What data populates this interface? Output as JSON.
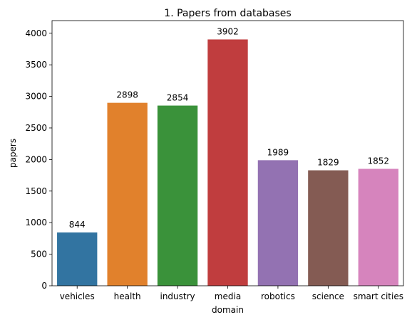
{
  "chart_data": {
    "type": "bar",
    "title": "1. Papers from databases",
    "xlabel": "domain",
    "ylabel": "papers",
    "categories": [
      "vehicles",
      "health",
      "industry",
      "media",
      "robotics",
      "science",
      "smart cities"
    ],
    "values": [
      844,
      2898,
      2854,
      3902,
      1989,
      1829,
      1852
    ],
    "data_labels": [
      "844",
      "2898",
      "2854",
      "3902",
      "1989",
      "1829",
      "1852"
    ],
    "colors": [
      "#3274a1",
      "#e1812c",
      "#3a923a",
      "#c03d3e",
      "#9372b2",
      "#845b53",
      "#d684bd"
    ],
    "ylim": [
      0,
      4200
    ],
    "yticks": [
      0,
      500,
      1000,
      1500,
      2000,
      2500,
      3000,
      3500,
      4000
    ],
    "grid": false,
    "legend": "none"
  }
}
